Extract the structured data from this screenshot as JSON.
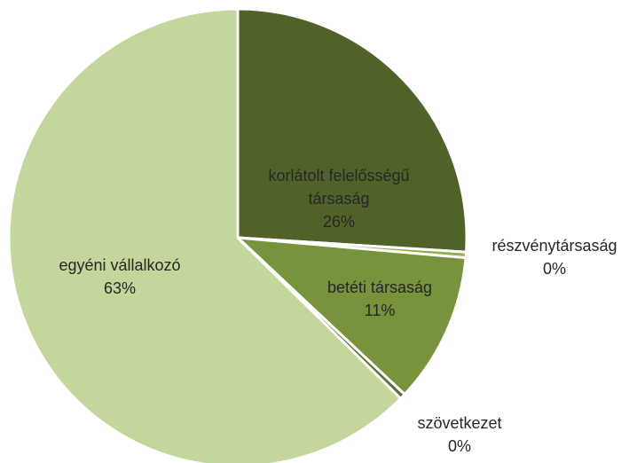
{
  "chart_data": {
    "type": "pie",
    "categories": [
      "korlátolt felelősségű társaság",
      "részvénytársaság",
      "betéti társaság",
      "szövetkezet",
      "egyéni vállalkozó"
    ],
    "values": [
      26,
      0.4,
      10.6,
      0.4,
      62.6
    ],
    "value_labels": [
      "26%",
      "0%",
      "11%",
      "0%",
      "63%"
    ],
    "colors": [
      "#4f6228",
      "#92b050",
      "#77933c",
      "#5a7030",
      "#c3d69b"
    ]
  }
}
